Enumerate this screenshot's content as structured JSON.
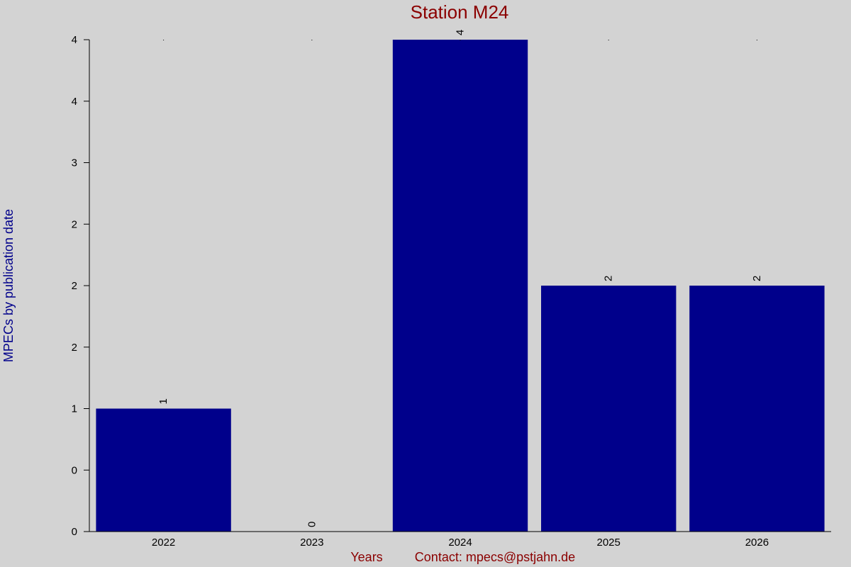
{
  "chart_data": {
    "type": "bar",
    "title": "Station M24",
    "ylabel": "MPECs by publication date",
    "xlabel": "Years",
    "contact": "Contact: mpecs@pstjahn.de",
    "categories": [
      "2022",
      "2023",
      "2024",
      "2025",
      "2026"
    ],
    "values": [
      1,
      0,
      4,
      2,
      2
    ],
    "data_labels": [
      "1",
      "0",
      "4",
      "2",
      "2"
    ],
    "ylim": [
      0,
      4
    ],
    "y_ticks": [
      0,
      0.5,
      1,
      1.5,
      2,
      2.5,
      3,
      3.5,
      4
    ],
    "y_tick_labels": [
      "0",
      "0",
      "1",
      "2",
      "2",
      "2",
      "3",
      "4",
      "4"
    ],
    "grid": false,
    "legend": "none",
    "colors": {
      "bar": "#00008b",
      "background": "#d3d3d3",
      "title": "#8b0000",
      "ylabel": "#00008b",
      "footer": "#8b0000"
    }
  }
}
